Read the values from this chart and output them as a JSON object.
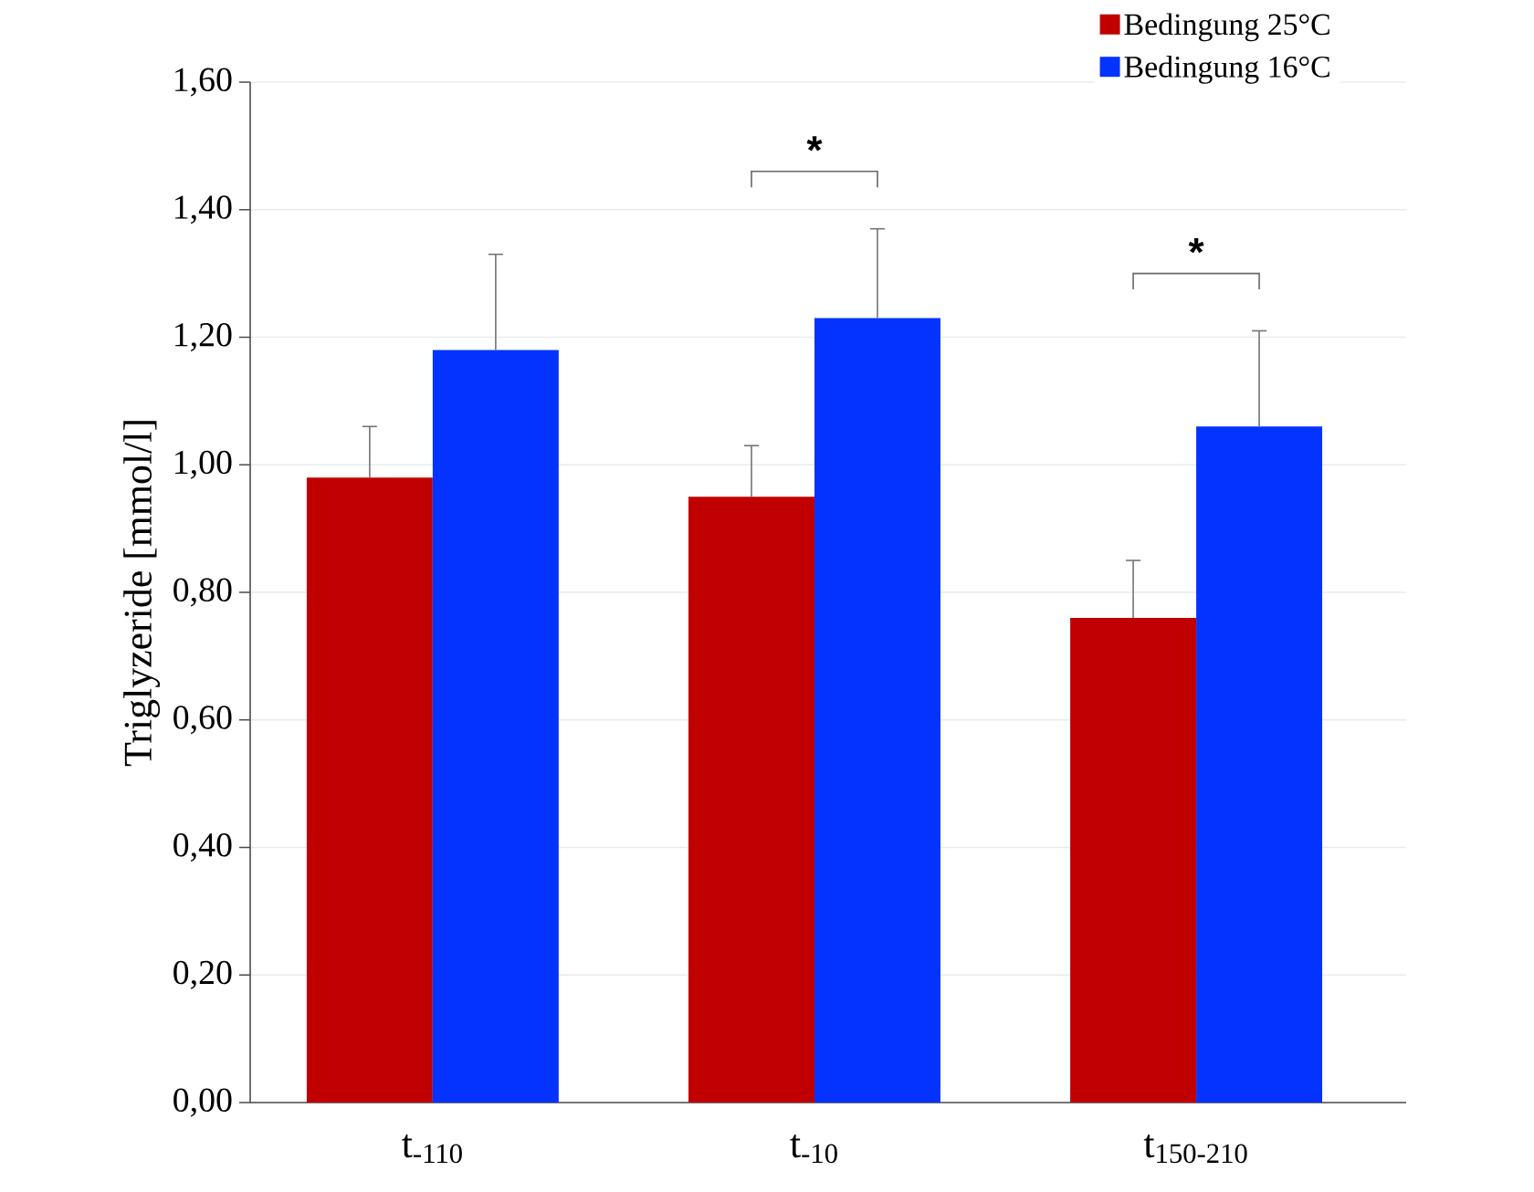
{
  "chart_data": {
    "type": "bar",
    "ylabel": "Triglyzeride [mmol/l]",
    "categories": [
      "t$_{-110}$",
      "t$_{-10}$",
      "t$_{150-210}$"
    ],
    "series": [
      {
        "name": "Bedingung 25°C",
        "color": "#c00000",
        "values": [
          0.98,
          0.95,
          0.76
        ],
        "errors": [
          0.08,
          0.08,
          0.09
        ]
      },
      {
        "name": "Bedingung 16°C",
        "color": "#0433ff",
        "values": [
          1.18,
          1.23,
          1.06
        ],
        "errors": [
          0.15,
          0.14,
          0.15
        ]
      }
    ],
    "ylim": [
      0,
      1.6
    ],
    "yticks": [
      {
        "value": 0,
        "label": "0,00"
      },
      {
        "value": 0.2,
        "label": "0,20"
      },
      {
        "value": 0.4,
        "label": "0,40"
      },
      {
        "value": 0.6,
        "label": "0,60"
      },
      {
        "value": 0.8,
        "label": "0,80"
      },
      {
        "value": 1.0,
        "label": "1,00"
      },
      {
        "value": 1.2,
        "label": "1,20"
      },
      {
        "value": 1.4,
        "label": "1,40"
      },
      {
        "value": 1.6,
        "label": "1,60"
      }
    ],
    "annotations": [
      "*",
      "*"
    ],
    "grid": "y",
    "legend": "top right"
  }
}
